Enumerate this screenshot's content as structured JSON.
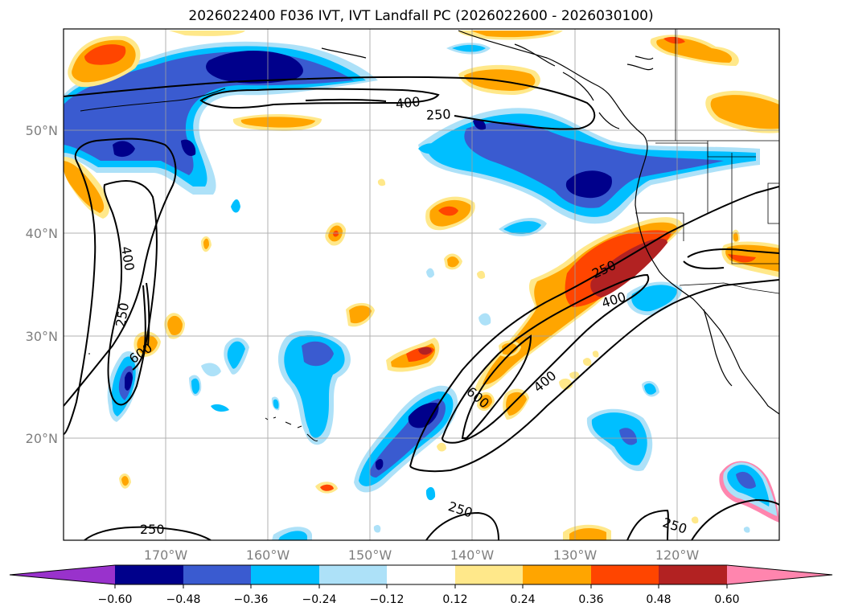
{
  "title": "2026022400 F036 IVT, IVT Landfall PC (2026022600 - 2026030100)",
  "lat_labels": [
    "50°N",
    "40°N",
    "30°N",
    "20°N"
  ],
  "lon_labels": [
    "170°W",
    "160°W",
    "150°W",
    "140°W",
    "130°W",
    "120°W"
  ],
  "contour_labels": [
    "400",
    "250",
    "400",
    "250",
    "600",
    "250",
    "400",
    "400",
    "600",
    "250",
    "250",
    "250"
  ],
  "colorbar": {
    "ticks": [
      "−0.60",
      "−0.48",
      "−0.36",
      "−0.24",
      "−0.12",
      "0.12",
      "0.24",
      "0.36",
      "0.48",
      "0.60"
    ],
    "colors": {
      "under": "#9932CC",
      "n060": "#00008B",
      "n048": "#3A5BD0",
      "n036": "#00BFFF",
      "n024": "#ADE1F8",
      "neutral": "#FFFFFF",
      "p012": "#FFE88A",
      "p024": "#FFA500",
      "p036": "#FF4500",
      "p048": "#B22222",
      "over": "#FF85AE"
    }
  }
}
